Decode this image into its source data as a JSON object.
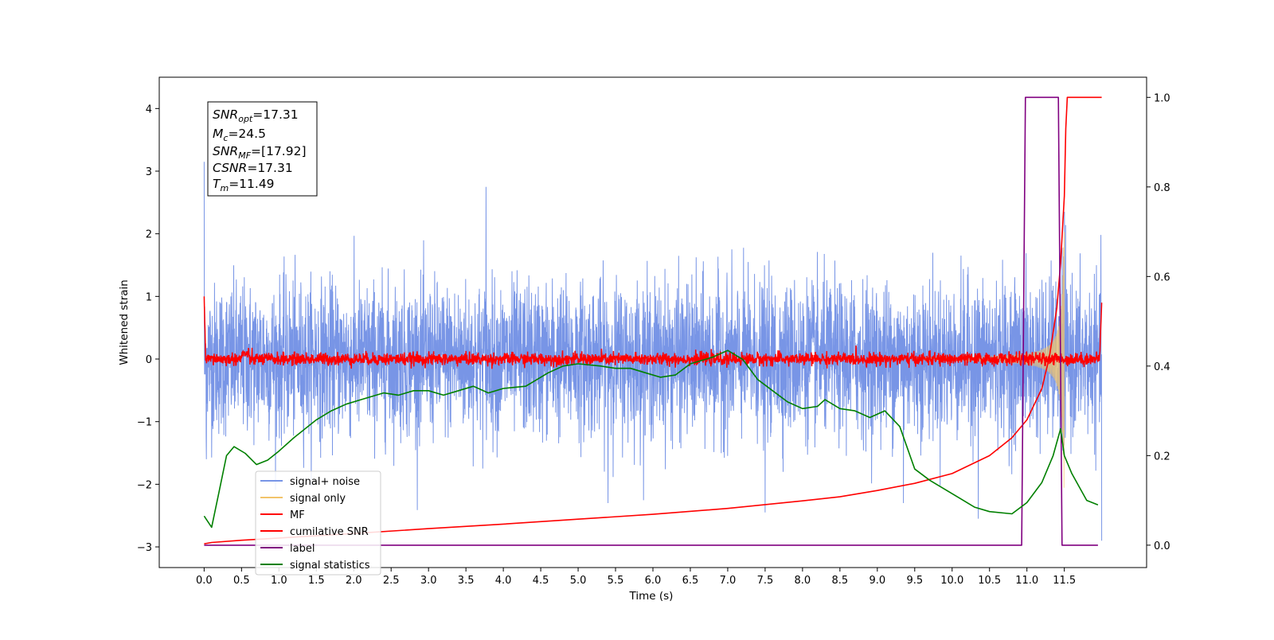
{
  "chart_data": {
    "type": "line",
    "xlabel": "Time (s)",
    "ylabel": "Whitened strain",
    "xlim": [
      -0.6,
      12.6
    ],
    "ylim": [
      -3.33,
      4.5
    ],
    "y2lim": [
      -0.05,
      1.045
    ],
    "grid": false,
    "legend_position": "lower-left",
    "x_ticks": [
      0.0,
      0.5,
      1.0,
      1.5,
      2.0,
      2.5,
      3.0,
      3.5,
      4.0,
      4.5,
      5.0,
      5.5,
      6.0,
      6.5,
      7.0,
      7.5,
      8.0,
      8.5,
      9.0,
      9.5,
      10.0,
      10.5,
      11.0,
      11.5
    ],
    "x_tick_labels": [
      "0.0",
      "0.5",
      "1.0",
      "1.5",
      "2.0",
      "2.5",
      "3.0",
      "3.5",
      "4.0",
      "4.5",
      "5.0",
      "5.5",
      "6.0",
      "6.5",
      "7.0",
      "7.5",
      "8.0",
      "8.5",
      "9.0",
      "9.5",
      "10.0",
      "10.5",
      "11.0",
      "11.5"
    ],
    "y_ticks": [
      -3,
      -2,
      -1,
      0,
      1,
      2,
      3,
      4
    ],
    "y_tick_labels": [
      "−3",
      "−2",
      "−1",
      "0",
      "1",
      "2",
      "3",
      "4"
    ],
    "y2_ticks": [
      0.0,
      0.2,
      0.4,
      0.6,
      0.8,
      1.0
    ],
    "y2_tick_labels": [
      "0.0",
      "0.2",
      "0.4",
      "0.6",
      "0.8",
      "1.0"
    ],
    "annotation": {
      "snr_opt": {
        "base": "SNR",
        "sub": "opt",
        "value": "=17.31"
      },
      "mc": {
        "base": "M",
        "sub": "c",
        "value": "=24.5"
      },
      "snr_mf": {
        "base": "SNR",
        "sub": "MF",
        "value": "=[17.92]"
      },
      "csnr": {
        "base": "CSNR",
        "sub": "",
        "value": "=17.31"
      },
      "tm": {
        "base": "T",
        "sub": "m",
        "value": "=11.49"
      }
    },
    "series": [
      {
        "name": "signal+ noise",
        "color": "#7895e6",
        "axis": "left",
        "kind": "noise",
        "x_range": [
          0.0,
          12.0
        ],
        "typical_std": 0.6,
        "envelope_max": 2.3,
        "envelope_min": -2.5,
        "spikes": [
          [
            0.0,
            3.15
          ],
          [
            0.03,
            -1.6
          ],
          [
            3.77,
            2.75
          ],
          [
            5.4,
            -2.3
          ],
          [
            7.5,
            -2.45
          ],
          [
            9.35,
            -2.3
          ],
          [
            10.35,
            -2.55
          ],
          [
            11.5,
            2.35
          ],
          [
            12.0,
            -2.9
          ]
        ]
      },
      {
        "name": "signal only",
        "color": "#f2c46b",
        "axis": "left",
        "kind": "chirp",
        "x_range": [
          0.0,
          11.5
        ],
        "peak_amplitude": 2.1
      },
      {
        "name": "MF",
        "color": "#ff0000",
        "axis": "left",
        "kind": "mf",
        "x_range": [
          0.0,
          12.0
        ],
        "start_value": 1.0,
        "end_value": 0.9,
        "noise_std": 0.05
      },
      {
        "name": "cumilative SNR",
        "color": "#ff0000",
        "axis": "right",
        "x": [
          0.0,
          0.1,
          0.5,
          1.0,
          2.0,
          3.0,
          4.0,
          5.0,
          6.0,
          7.0,
          8.0,
          8.5,
          9.0,
          9.5,
          10.0,
          10.5,
          10.8,
          11.0,
          11.2,
          11.3,
          11.4,
          11.45,
          11.5,
          11.52,
          11.54,
          11.6,
          12.0
        ],
        "values": [
          0.003,
          0.006,
          0.011,
          0.016,
          0.026,
          0.037,
          0.047,
          0.058,
          0.069,
          0.082,
          0.099,
          0.108,
          0.122,
          0.138,
          0.16,
          0.2,
          0.24,
          0.28,
          0.35,
          0.42,
          0.53,
          0.63,
          0.78,
          0.93,
          1.0,
          1.0,
          1.0
        ]
      },
      {
        "name": "label",
        "color": "#800080",
        "axis": "right",
        "x": [
          0.0,
          10.93,
          10.98,
          11.42,
          11.47,
          11.95
        ],
        "values": [
          0.0,
          0.0,
          1.0,
          1.0,
          0.0,
          0.0
        ]
      },
      {
        "name": "signal statistics",
        "color": "#008000",
        "axis": "right",
        "x": [
          0.0,
          0.1,
          0.2,
          0.3,
          0.4,
          0.55,
          0.7,
          0.85,
          1.0,
          1.2,
          1.5,
          1.7,
          1.9,
          2.1,
          2.4,
          2.6,
          2.8,
          3.0,
          3.2,
          3.4,
          3.6,
          3.8,
          4.0,
          4.3,
          4.6,
          4.8,
          5.0,
          5.3,
          5.5,
          5.7,
          5.9,
          6.1,
          6.3,
          6.5,
          6.8,
          7.0,
          7.2,
          7.4,
          7.6,
          7.8,
          8.0,
          8.2,
          8.3,
          8.5,
          8.7,
          8.9,
          9.1,
          9.3,
          9.5,
          9.7,
          9.9,
          10.1,
          10.3,
          10.5,
          10.8,
          11.0,
          11.2,
          11.35,
          11.45,
          11.5,
          11.6,
          11.8,
          11.95
        ],
        "values": [
          0.065,
          0.04,
          0.12,
          0.2,
          0.22,
          0.205,
          0.18,
          0.19,
          0.21,
          0.24,
          0.28,
          0.3,
          0.315,
          0.325,
          0.34,
          0.335,
          0.345,
          0.345,
          0.335,
          0.345,
          0.355,
          0.34,
          0.35,
          0.355,
          0.385,
          0.4,
          0.405,
          0.4,
          0.395,
          0.395,
          0.385,
          0.375,
          0.38,
          0.405,
          0.42,
          0.435,
          0.415,
          0.37,
          0.345,
          0.32,
          0.305,
          0.31,
          0.325,
          0.305,
          0.3,
          0.285,
          0.3,
          0.265,
          0.17,
          0.145,
          0.125,
          0.105,
          0.085,
          0.075,
          0.07,
          0.095,
          0.14,
          0.2,
          0.26,
          0.2,
          0.16,
          0.1,
          0.09
        ]
      }
    ]
  }
}
